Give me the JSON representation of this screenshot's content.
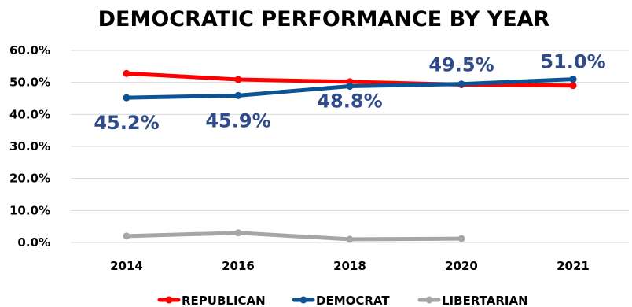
{
  "chart_data": {
    "type": "line",
    "title": "DEMOCRATIC PERFORMANCE BY YEAR",
    "xlabel": "",
    "ylabel": "",
    "categories": [
      "2014",
      "2016",
      "2018",
      "2020",
      "2021"
    ],
    "y_ticks": [
      "0.0%",
      "10.0%",
      "20.0%",
      "30.0%",
      "40.0%",
      "50.0%",
      "60.0%"
    ],
    "ylim": [
      0,
      60
    ],
    "grid": true,
    "legend_position": "bottom",
    "series": [
      {
        "name": "REPUBLICAN",
        "color": "#ff0000",
        "values": [
          52.8,
          50.9,
          50.2,
          49.3,
          49.0
        ]
      },
      {
        "name": "DEMOCRAT",
        "color": "#0b5394",
        "values": [
          45.2,
          45.9,
          48.8,
          49.5,
          51.0
        ]
      },
      {
        "name": "LIBERTARIAN",
        "color": "#a6a6a6",
        "values": [
          2.0,
          3.0,
          1.0,
          1.2,
          null
        ]
      }
    ],
    "data_labels": [
      {
        "series": "DEMOCRAT",
        "category": "2014",
        "text": "45.2%"
      },
      {
        "series": "DEMOCRAT",
        "category": "2016",
        "text": "45.9%"
      },
      {
        "series": "DEMOCRAT",
        "category": "2018",
        "text": "48.8%"
      },
      {
        "series": "DEMOCRAT",
        "category": "2020",
        "text": "49.5%"
      },
      {
        "series": "DEMOCRAT",
        "category": "2021",
        "text": "51.0%"
      }
    ],
    "data_label_color": "#2f4b8c"
  }
}
